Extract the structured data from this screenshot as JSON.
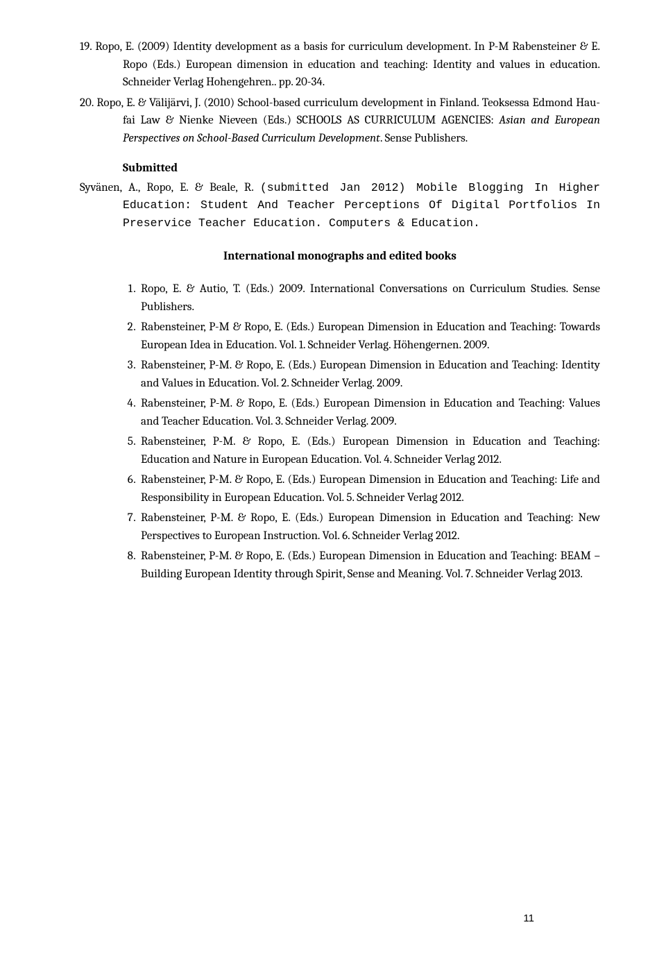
{
  "refs": {
    "r19": "19. Ropo, E.  (2009) Identity development as a basis for curriculum development. In P-M Rabensteiner & E. Ropo (Eds.) European dimension in education and teaching: Identity and values in education. Schneider Verlag Hohengehren.. pp. 20-34.",
    "r20_part1": "20. Ropo, E. & Välijärvi, J. (2010) School-based curriculum development in Finland. Teoksessa Edmond Hau-fai Law & Nienke Nieveen (Eds.) SCHOOLS AS CURRICULUM AGENCIES: ",
    "r20_italic": "Asian and European Perspectives on School-Based Curriculum Development",
    "r20_part2": ". Sense Publishers."
  },
  "submitted": {
    "heading": "Submitted",
    "entry_plain": "Syvänen, A., Ropo, E. & Beale, R. ",
    "entry_mono": "(submitted Jan 2012) Mobile Blogging In Higher Education: Student And Teacher Perceptions Of Digital Portfolios In Preservice Teacher Education. Computers & Education."
  },
  "section_heading": "International monographs and edited books",
  "books": {
    "b1": "Ropo, E. & Autio, T. (Eds.) 2009. International Conversations on Curriculum Studies. Sense Publishers.",
    "b2": "Rabensteiner, P-M & Ropo, E. (Eds.) European Dimension in Education and Teaching: Towards European Idea in Education. Vol. 1. Schneider Verlag. Höhengernen. 2009.",
    "b3": "Rabensteiner, P-M. & Ropo, E. (Eds.) European Dimension in Education and Teaching: Identity and Values in Education. Vol. 2. Schneider Verlag. 2009.",
    "b4": "Rabensteiner, P-M. & Ropo, E. (Eds.) European Dimension in Education and Teaching: Values and Teacher Education. Vol. 3. Schneider Verlag. 2009.",
    "b5": "Rabensteiner, P-M. & Ropo, E. (Eds.) European Dimension in Education and Teaching: Education and Nature in European Education. Vol. 4. Schneider Verlag 2012.",
    "b6": "Rabensteiner, P-M. & Ropo, E. (Eds.) European Dimension in Education and Teaching: Life and Responsibility in European Education. Vol. 5.  Schneider Verlag 2012.",
    "b7": "Rabensteiner, P-M. & Ropo, E. (Eds.) European Dimension in Education and Teaching:  New Perspectives to European Instruction. Vol. 6.  Schneider Verlag 2012.",
    "b8": "Rabensteiner, P-M. & Ropo, E. (Eds.) European Dimension in Education and Teaching:  BEAM – Building European Identity through Spirit, Sense and Meaning. Vol. 7. Schneider Verlag 2013."
  },
  "page_number": "11"
}
